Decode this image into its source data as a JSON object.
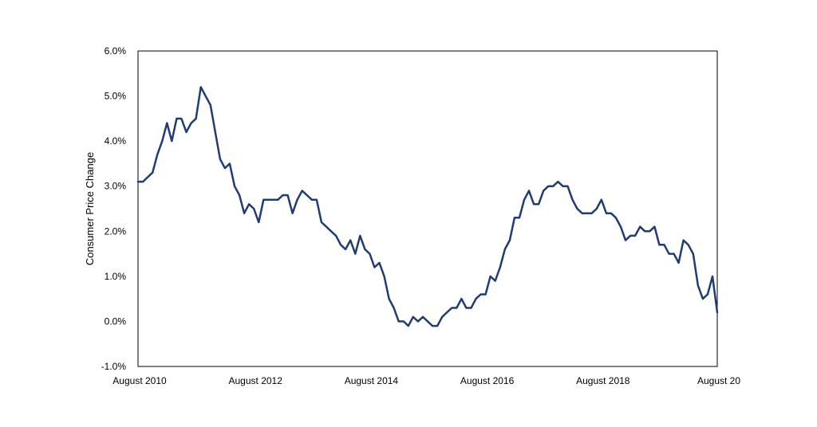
{
  "chart_data": {
    "type": "line",
    "ylabel": "Consumer Price Change",
    "ylim": [
      -1.0,
      6.0
    ],
    "y_ticks": [
      "6.0%",
      "5.0%",
      "4.0%",
      "3.0%",
      "2.0%",
      "1.0%",
      "0.0%",
      "-1.0%"
    ],
    "x_ticks": [
      "August 2010",
      "August 2012",
      "August 2014",
      "August 2016",
      "August 2018",
      "August 20"
    ],
    "grid": false,
    "x_start": "2010-08",
    "x_end": "2020-08",
    "series": [
      {
        "color": "#1f3c73",
        "x": [
          "2010-08",
          "2010-09",
          "2010-10",
          "2010-11",
          "2010-12",
          "2011-01",
          "2011-02",
          "2011-03",
          "2011-04",
          "2011-05",
          "2011-06",
          "2011-07",
          "2011-08",
          "2011-09",
          "2011-10",
          "2011-11",
          "2011-12",
          "2012-01",
          "2012-02",
          "2012-03",
          "2012-04",
          "2012-05",
          "2012-06",
          "2012-07",
          "2012-08",
          "2012-09",
          "2012-10",
          "2012-11",
          "2012-12",
          "2013-01",
          "2013-02",
          "2013-03",
          "2013-04",
          "2013-05",
          "2013-06",
          "2013-07",
          "2013-08",
          "2013-09",
          "2013-10",
          "2013-11",
          "2013-12",
          "2014-01",
          "2014-02",
          "2014-03",
          "2014-04",
          "2014-05",
          "2014-06",
          "2014-07",
          "2014-08",
          "2014-09",
          "2014-10",
          "2014-11",
          "2014-12",
          "2015-01",
          "2015-02",
          "2015-03",
          "2015-04",
          "2015-05",
          "2015-06",
          "2015-07",
          "2015-08",
          "2015-09",
          "2015-10",
          "2015-11",
          "2015-12",
          "2016-01",
          "2016-02",
          "2016-03",
          "2016-04",
          "2016-05",
          "2016-06",
          "2016-07",
          "2016-08",
          "2016-09",
          "2016-10",
          "2016-11",
          "2016-12",
          "2017-01",
          "2017-02",
          "2017-03",
          "2017-04",
          "2017-05",
          "2017-06",
          "2017-07",
          "2017-08",
          "2017-09",
          "2017-10",
          "2017-11",
          "2017-12",
          "2018-01",
          "2018-02",
          "2018-03",
          "2018-04",
          "2018-05",
          "2018-06",
          "2018-07",
          "2018-08",
          "2018-09",
          "2018-10",
          "2018-11",
          "2018-12",
          "2019-01",
          "2019-02",
          "2019-03",
          "2019-04",
          "2019-05",
          "2019-06",
          "2019-07",
          "2019-08",
          "2019-09",
          "2019-10",
          "2019-11",
          "2019-12",
          "2020-01",
          "2020-02",
          "2020-03",
          "2020-04",
          "2020-05",
          "2020-06",
          "2020-07",
          "2020-08"
        ],
        "values": [
          3.1,
          3.1,
          3.2,
          3.3,
          3.7,
          4.0,
          4.4,
          4.0,
          4.5,
          4.5,
          4.2,
          4.4,
          4.5,
          5.2,
          5.0,
          4.8,
          4.2,
          3.6,
          3.4,
          3.5,
          3.0,
          2.8,
          2.4,
          2.6,
          2.5,
          2.2,
          2.7,
          2.7,
          2.7,
          2.7,
          2.8,
          2.8,
          2.4,
          2.7,
          2.9,
          2.8,
          2.7,
          2.7,
          2.2,
          2.1,
          2.0,
          1.9,
          1.7,
          1.6,
          1.8,
          1.5,
          1.9,
          1.6,
          1.5,
          1.2,
          1.3,
          1.0,
          0.5,
          0.3,
          0.0,
          0.0,
          -0.1,
          0.1,
          0.0,
          0.1,
          0.0,
          -0.1,
          -0.1,
          0.1,
          0.2,
          0.3,
          0.3,
          0.5,
          0.3,
          0.3,
          0.5,
          0.6,
          0.6,
          1.0,
          0.9,
          1.2,
          1.6,
          1.8,
          2.3,
          2.3,
          2.7,
          2.9,
          2.6,
          2.6,
          2.9,
          3.0,
          3.0,
          3.1,
          3.0,
          3.0,
          2.7,
          2.5,
          2.4,
          2.4,
          2.4,
          2.5,
          2.7,
          2.4,
          2.4,
          2.3,
          2.1,
          1.8,
          1.9,
          1.9,
          2.1,
          2.0,
          2.0,
          2.1,
          1.7,
          1.7,
          1.5,
          1.5,
          1.3,
          1.8,
          1.7,
          1.5,
          0.8,
          0.5,
          0.6,
          1.0,
          0.2
        ]
      }
    ]
  }
}
